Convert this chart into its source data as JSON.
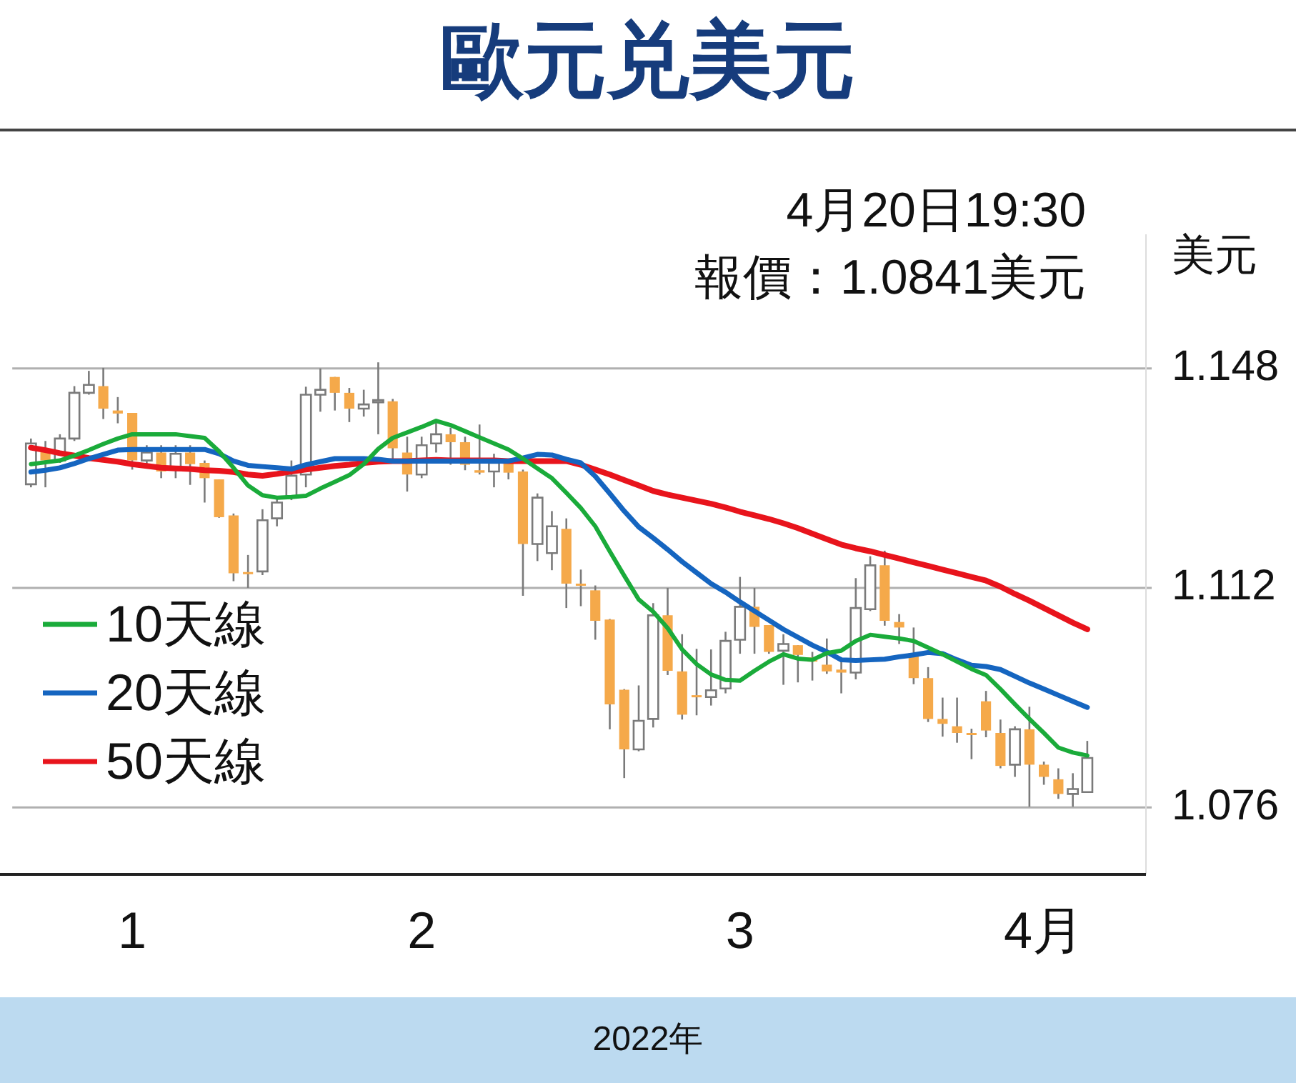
{
  "chart_data": {
    "type": "candlestick",
    "title": "歐元兑美元",
    "xlabel": "2022年",
    "ylabel": "美元",
    "annotations": [
      "4月20日19:30",
      "報價：1.0841美元"
    ],
    "categories": [
      null,
      null,
      null,
      null,
      null,
      null,
      null,
      "1",
      null,
      null,
      null,
      null,
      null,
      null,
      null,
      null,
      null,
      null,
      null,
      null,
      null,
      null,
      null,
      null,
      null,
      null,
      null,
      "2",
      null,
      null,
      null,
      null,
      null,
      null,
      null,
      null,
      null,
      null,
      null,
      null,
      null,
      null,
      null,
      null,
      null,
      null,
      null,
      null,
      null,
      "3",
      null,
      null,
      null,
      null,
      null,
      null,
      null,
      null,
      null,
      null,
      null,
      null,
      null,
      null,
      null,
      null,
      null,
      null,
      null,
      null,
      "4月",
      null,
      null,
      null
    ],
    "colors": [
      "#ffffff",
      "#f5a94a",
      "#ffffff",
      "#ffffff",
      "#ffffff",
      "#f5a94a",
      "#f5a94a",
      "#f5a94a",
      "#ffffff",
      "#f5a94a",
      "#ffffff",
      "#f5a94a",
      "#f5a94a",
      "#f5a94a",
      "#f5a94a",
      "#f5a94a",
      "#ffffff",
      "#ffffff",
      "#ffffff",
      "#ffffff",
      "#ffffff",
      "#f5a94a",
      "#f5a94a",
      "#ffffff",
      "#ffffff",
      "#f5a94a",
      "#f5a94a",
      "#ffffff",
      "#ffffff",
      "#f5a94a",
      "#f5a94a",
      "#f5a94a",
      "#ffffff",
      "#f5a94a",
      "#f5a94a",
      "#ffffff",
      "#ffffff",
      "#f5a94a",
      "#f5a94a",
      "#f5a94a",
      "#f5a94a",
      "#f5a94a",
      "#ffffff",
      "#ffffff",
      "#f5a94a",
      "#f5a94a",
      "#f5a94a",
      "#ffffff",
      "#ffffff",
      "#ffffff",
      "#f5a94a",
      "#f5a94a",
      "#ffffff",
      "#f5a94a",
      "#f5a94a",
      "#f5a94a",
      "#f5a94a",
      "#ffffff",
      "#ffffff",
      "#f5a94a",
      "#f5a94a",
      "#f5a94a",
      "#f5a94a",
      "#f5a94a",
      "#f5a94a",
      "#f5a94a",
      "#f5a94a",
      "#f5a94a",
      "#ffffff",
      "#f5a94a",
      "#f5a94a",
      "#f5a94a",
      "#ffffff",
      "#ffffff"
    ],
    "ohlc": [
      [
        1.129,
        1.1365,
        1.1285,
        1.1357
      ],
      [
        1.1343,
        1.1361,
        1.1285,
        1.1329
      ],
      [
        1.1329,
        1.1372,
        1.1325,
        1.1365
      ],
      [
        1.1365,
        1.1451,
        1.1361,
        1.144
      ],
      [
        1.144,
        1.1476,
        1.1437,
        1.1453
      ],
      [
        1.1451,
        1.1481,
        1.1397,
        1.1414
      ],
      [
        1.1411,
        1.1433,
        1.139,
        1.1406
      ],
      [
        1.1407,
        1.1407,
        1.1314,
        1.1329
      ],
      [
        1.1329,
        1.1354,
        1.1318,
        1.1342
      ],
      [
        1.1342,
        1.1354,
        1.13,
        1.1311
      ],
      [
        1.1318,
        1.1354,
        1.13,
        1.134
      ],
      [
        1.1342,
        1.1354,
        1.1289,
        1.1323
      ],
      [
        1.1325,
        1.1329,
        1.126,
        1.13
      ],
      [
        1.1298,
        1.1298,
        1.1235,
        1.1236
      ],
      [
        1.1239,
        1.1242,
        1.1131,
        1.1144
      ],
      [
        1.1146,
        1.1174,
        1.112,
        1.1144
      ],
      [
        1.1147,
        1.1249,
        1.1141,
        1.1231
      ],
      [
        1.1234,
        1.1268,
        1.1221,
        1.126
      ],
      [
        1.1268,
        1.1329,
        1.1264,
        1.1304
      ],
      [
        1.1306,
        1.145,
        1.1285,
        1.1437
      ],
      [
        1.1437,
        1.148,
        1.1409,
        1.1445
      ],
      [
        1.1466,
        1.1466,
        1.1411,
        1.144
      ],
      [
        1.144,
        1.1448,
        1.1392,
        1.1414
      ],
      [
        1.1414,
        1.1445,
        1.1401,
        1.1421
      ],
      [
        1.1427,
        1.149,
        1.1372,
        1.1428
      ],
      [
        1.1426,
        1.143,
        1.1332,
        1.1349
      ],
      [
        1.1342,
        1.1368,
        1.1278,
        1.1306
      ],
      [
        1.1306,
        1.1368,
        1.13,
        1.1354
      ],
      [
        1.1357,
        1.1394,
        1.1342,
        1.1372
      ],
      [
        1.1372,
        1.1383,
        1.1322,
        1.1359
      ],
      [
        1.1359,
        1.1368,
        1.1313,
        1.1322
      ],
      [
        1.1313,
        1.1388,
        1.1306,
        1.1309
      ],
      [
        1.1311,
        1.134,
        1.1285,
        1.1325
      ],
      [
        1.1325,
        1.1329,
        1.1298,
        1.1309
      ],
      [
        1.1311,
        1.1314,
        1.1107,
        1.1192
      ],
      [
        1.1192,
        1.1275,
        1.1164,
        1.1268
      ],
      [
        1.1177,
        1.1246,
        1.1149,
        1.1221
      ],
      [
        1.1217,
        1.1234,
        1.1087,
        1.1127
      ],
      [
        1.1127,
        1.115,
        1.109,
        1.1125
      ],
      [
        1.1116,
        1.1124,
        1.1035,
        1.1066
      ],
      [
        1.1068,
        1.1069,
        1.0888,
        1.0929
      ],
      [
        1.0953,
        1.0954,
        1.0808,
        1.0855
      ],
      [
        1.0855,
        1.096,
        1.0852,
        1.0902
      ],
      [
        1.0905,
        1.1095,
        1.0891,
        1.1075
      ],
      [
        1.1075,
        1.112,
        1.0977,
        1.0984
      ],
      [
        1.0983,
        1.1044,
        1.0904,
        1.0912
      ],
      [
        1.0944,
        1.102,
        1.0911,
        1.0943
      ],
      [
        1.0941,
        1.1019,
        1.0927,
        1.0952
      ],
      [
        1.0955,
        1.1048,
        1.0947,
        1.1033
      ],
      [
        1.1035,
        1.1138,
        1.1012,
        1.1089
      ],
      [
        1.1089,
        1.112,
        1.1012,
        1.1056
      ],
      [
        1.1059,
        1.1059,
        1.1012,
        1.1015
      ],
      [
        1.1017,
        1.1044,
        1.0961,
        1.1028
      ],
      [
        1.1026,
        1.1026,
        1.0965,
        1.101
      ],
      [
        1.1006,
        1.1015,
        1.0968,
        1.0999
      ],
      [
        1.0994,
        1.1037,
        1.0979,
        1.0983
      ],
      [
        1.0986,
        1.1005,
        1.0947,
        1.0981
      ],
      [
        1.0981,
        1.1136,
        1.097,
        1.1087
      ],
      [
        1.1085,
        1.1172,
        1.1082,
        1.1157
      ],
      [
        1.1157,
        1.1181,
        1.1058,
        1.1066
      ],
      [
        1.1064,
        1.1077,
        1.1028,
        1.1055
      ],
      [
        1.1013,
        1.1055,
        1.0962,
        1.0972
      ],
      [
        1.0972,
        1.099,
        1.09,
        1.0905
      ],
      [
        1.0905,
        1.094,
        1.0876,
        1.0897
      ],
      [
        1.0893,
        1.094,
        1.0866,
        1.0882
      ],
      [
        1.0882,
        1.0889,
        1.0839,
        1.0881
      ],
      [
        1.0934,
        1.0951,
        1.0875,
        1.0886
      ],
      [
        1.0882,
        1.0904,
        1.0824,
        1.0828
      ],
      [
        1.083,
        1.0893,
        1.081,
        1.0888
      ],
      [
        1.0888,
        1.0925,
        1.0761,
        1.083
      ],
      [
        1.083,
        1.0835,
        1.0797,
        1.081
      ],
      [
        1.0806,
        1.0824,
        1.0774,
        1.0782
      ],
      [
        1.0782,
        1.0816,
        1.0761,
        1.079
      ],
      [
        1.0785,
        1.0869,
        1.0785,
        1.0841
      ]
    ],
    "series": [
      {
        "name": "10天線",
        "type": "line",
        "color": "#1aab3a",
        "values": [
          1.1323,
          1.1326,
          1.1329,
          1.1337,
          1.1346,
          1.1356,
          1.1365,
          1.1372,
          1.1372,
          1.1372,
          1.1372,
          1.1369,
          1.1366,
          1.1344,
          1.1317,
          1.1288,
          1.1272,
          1.1268,
          1.1269,
          1.1271,
          1.1283,
          1.1294,
          1.1305,
          1.1323,
          1.1348,
          1.1366,
          1.1375,
          1.1384,
          1.1394,
          1.1387,
          1.1377,
          1.1367,
          1.1357,
          1.1347,
          1.1332,
          1.1316,
          1.13,
          1.1276,
          1.1251,
          1.1221,
          1.118,
          1.114,
          1.1101,
          1.1081,
          1.1054,
          1.1019,
          1.0995,
          1.0978,
          1.0969,
          1.0968,
          1.0984,
          1.0999,
          1.1011,
          1.1004,
          1.1002,
          1.1013,
          1.1017,
          1.1033,
          1.1043,
          1.104,
          1.1037,
          1.1033,
          1.1022,
          1.1011,
          1.0999,
          1.0987,
          1.0977,
          1.0954,
          1.0929,
          1.0905,
          1.0882,
          1.0858,
          1.085,
          1.0845
        ]
      },
      {
        "name": "20天線",
        "type": "line",
        "color": "#1565c0",
        "values": [
          1.131,
          1.1313,
          1.1317,
          1.1324,
          1.1332,
          1.1339,
          1.1346,
          1.1347,
          1.1347,
          1.1347,
          1.1347,
          1.1347,
          1.1347,
          1.134,
          1.1328,
          1.1321,
          1.1319,
          1.1317,
          1.1315,
          1.1322,
          1.1327,
          1.1332,
          1.1332,
          1.1332,
          1.1331,
          1.1328,
          1.1328,
          1.1328,
          1.1328,
          1.1328,
          1.1328,
          1.1328,
          1.1328,
          1.1328,
          1.1333,
          1.1339,
          1.1338,
          1.1331,
          1.1325,
          1.1303,
          1.1275,
          1.1246,
          1.122,
          1.1202,
          1.1183,
          1.1163,
          1.1145,
          1.1127,
          1.1113,
          1.1097,
          1.1082,
          1.1067,
          1.1052,
          1.1039,
          1.1026,
          1.1015,
          1.1002,
          1.1001,
          1.1002,
          1.1003,
          1.1007,
          1.101,
          1.1014,
          1.1012,
          1.1002,
          1.0993,
          1.0991,
          1.0986,
          1.0975,
          1.0964,
          1.0954,
          1.0944,
          1.0934,
          1.0924
        ]
      },
      {
        "name": "50天線",
        "type": "line",
        "color": "#e8141c",
        "values": [
          1.135,
          1.1346,
          1.1341,
          1.1337,
          1.1333,
          1.133,
          1.1327,
          1.1323,
          1.132,
          1.1317,
          1.1316,
          1.1315,
          1.1313,
          1.1312,
          1.131,
          1.1306,
          1.1304,
          1.1307,
          1.1311,
          1.1314,
          1.1317,
          1.132,
          1.1322,
          1.1325,
          1.1327,
          1.1328,
          1.1328,
          1.1329,
          1.133,
          1.1329,
          1.1329,
          1.1329,
          1.1329,
          1.1328,
          1.1328,
          1.1328,
          1.1328,
          1.1328,
          1.1322,
          1.1314,
          1.1306,
          1.1297,
          1.1288,
          1.1279,
          1.1273,
          1.1268,
          1.1263,
          1.1258,
          1.1252,
          1.1245,
          1.1239,
          1.1233,
          1.1226,
          1.1218,
          1.1209,
          1.12,
          1.1191,
          1.1185,
          1.118,
          1.1174,
          1.1168,
          1.1162,
          1.1156,
          1.115,
          1.1144,
          1.1138,
          1.1132,
          1.1122,
          1.111,
          1.1099,
          1.1087,
          1.1075,
          1.1063,
          1.1052
        ]
      }
    ],
    "ylim": [
      1.065,
      1.17
    ],
    "yticks": [
      1.076,
      1.112,
      1.148
    ],
    "grid": "y",
    "legend": "left"
  }
}
